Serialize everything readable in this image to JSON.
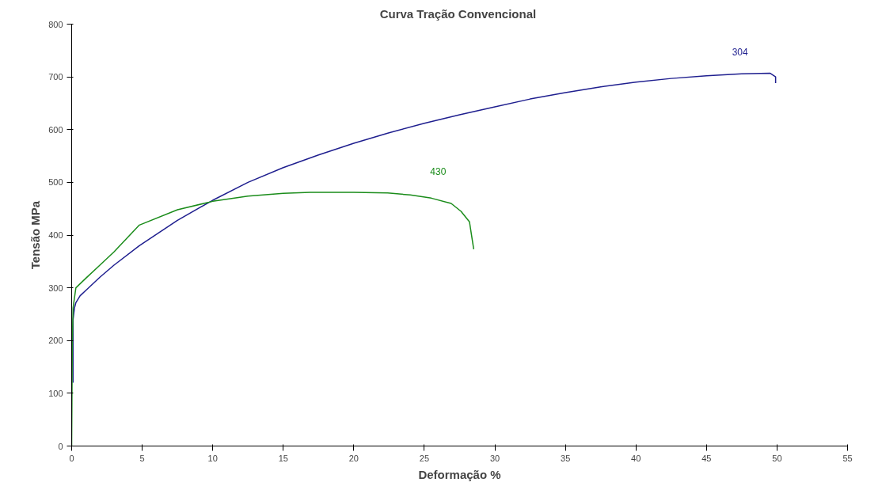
{
  "chart_data": {
    "type": "line",
    "title": "Curva  Tração Convencional",
    "xlabel": "Deformação %",
    "ylabel": "Tensão MPa",
    "xlim": [
      0,
      55
    ],
    "xticks": [
      0,
      5,
      10,
      15,
      20,
      25,
      30,
      35,
      40,
      45,
      50,
      55
    ],
    "ylim": [
      0,
      800
    ],
    "yticks": [
      0,
      100,
      200,
      300,
      400,
      500,
      600,
      700,
      800
    ],
    "grid": false,
    "series": [
      {
        "name": "304",
        "color": "#1f1f8f",
        "x": [
          0.1,
          0.1,
          0.2,
          0.3,
          0.6,
          1,
          2,
          3,
          4.8,
          7.5,
          10,
          12.5,
          15,
          17.5,
          20,
          22.5,
          25,
          27.5,
          30,
          32.5,
          35,
          37.5,
          40,
          42.5,
          45,
          47.5,
          49.5,
          49.9,
          49.9
        ],
        "values": [
          120,
          240,
          262,
          272,
          285,
          295,
          320,
          343,
          380,
          428,
          466,
          500,
          528,
          552,
          574,
          594,
          612,
          628,
          643,
          658,
          670,
          681,
          690,
          697,
          702,
          706,
          707,
          700,
          688
        ]
      },
      {
        "name": "430",
        "color": "#1a8c1a",
        "x": [
          0,
          0.05,
          0.1,
          0.3,
          1,
          2,
          3,
          4.8,
          7.5,
          10,
          12.5,
          15,
          16.9,
          20,
          22.4,
          24,
          25.5,
          26.9,
          27.6,
          28.2,
          28.5
        ],
        "values": [
          0,
          200,
          262,
          300,
          318,
          343,
          368,
          419,
          448,
          464,
          474,
          479,
          481,
          481,
          480,
          476,
          470,
          460,
          445,
          425,
          373
        ]
      }
    ]
  }
}
